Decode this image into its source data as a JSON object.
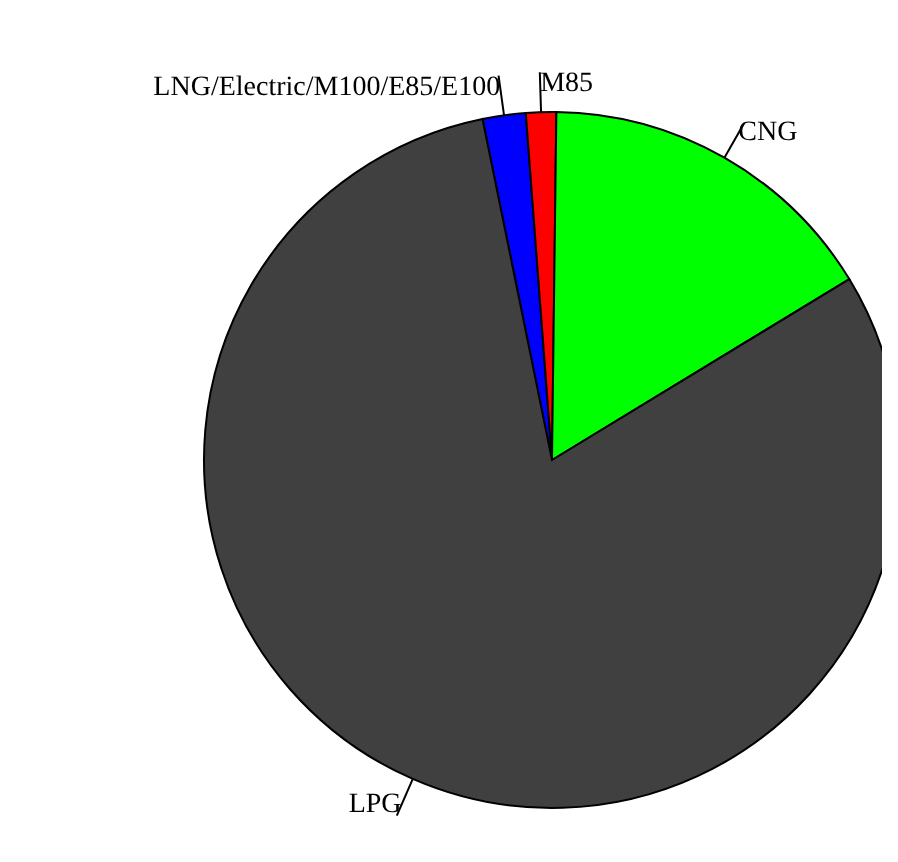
{
  "chart_data": {
    "type": "pie",
    "categories": [
      "LNG/Electric/M100/E85/E100",
      "M85",
      "CNG",
      "LPG"
    ],
    "values": [
      2.0,
      1.4,
      16.1,
      80.5
    ],
    "colors": [
      "#0000ff",
      "#ff0000",
      "#00ff00",
      "#404040"
    ]
  }
}
